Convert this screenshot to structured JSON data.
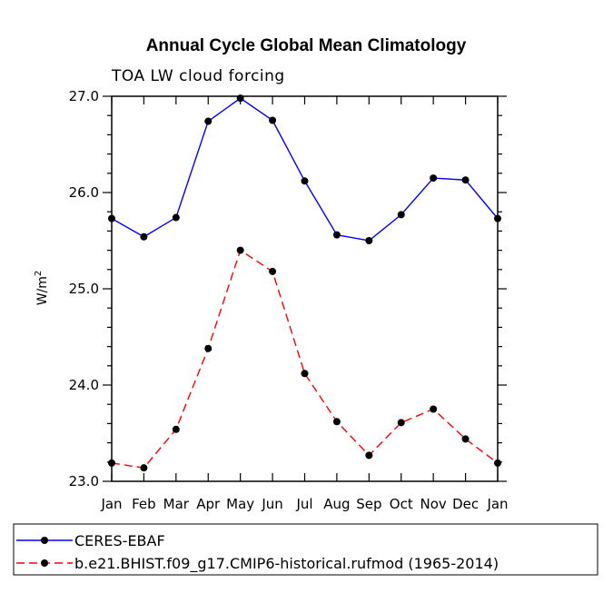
{
  "chart_data": {
    "type": "line",
    "title": "Annual Cycle Global Mean Climatology",
    "subtitle": "TOA LW cloud forcing",
    "ylabel": "W/m",
    "ylabel_superscript": "2",
    "xlabel": "",
    "categories": [
      "Jan",
      "Feb",
      "Mar",
      "Apr",
      "May",
      "Jun",
      "Jul",
      "Aug",
      "Sep",
      "Oct",
      "Nov",
      "Dec",
      "Jan"
    ],
    "ylim": [
      23.0,
      27.0
    ],
    "yticks": [
      23.0,
      24.0,
      25.0,
      26.0,
      27.0
    ],
    "ytick_labels": [
      "23.0",
      "24.0",
      "25.0",
      "26.0",
      "27.0"
    ],
    "legend_position": "bottom",
    "series": [
      {
        "name": "CERES-EBAF",
        "color": "#0000ff",
        "dash": "solid",
        "values": [
          25.73,
          25.54,
          25.74,
          26.74,
          26.98,
          26.75,
          26.12,
          25.56,
          25.5,
          25.77,
          26.15,
          26.13,
          25.73
        ]
      },
      {
        "name": "b.e21.BHIST.f09_g17.CMIP6-historical.rufmod (1965-2014)",
        "color": "#ff0000",
        "dash": "dashed",
        "values": [
          23.19,
          23.14,
          23.54,
          24.38,
          25.4,
          25.18,
          24.12,
          23.62,
          23.27,
          23.61,
          23.75,
          23.44,
          23.19
        ]
      }
    ]
  }
}
